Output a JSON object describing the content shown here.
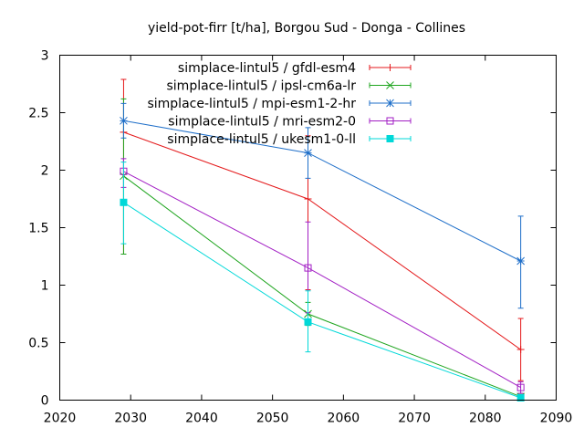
{
  "chart_data": {
    "type": "line",
    "title": "yield-pot-firr [t/ha], Borgou Sud - Donga - Collines",
    "xlabel": "",
    "ylabel": "",
    "xlim": [
      2020,
      2090
    ],
    "ylim": [
      0,
      3
    ],
    "xticks": [
      "2020",
      "2030",
      "2040",
      "2050",
      "2060",
      "2070",
      "2080",
      "2090"
    ],
    "yticks": [
      "0",
      "0.5",
      "1",
      "1.5",
      "2",
      "2.5",
      "3"
    ],
    "grid": false,
    "legend_position": "top-right",
    "series": [
      {
        "name": "simplace-lintul5 / gfdl-esm4",
        "color": "#e41a1c",
        "marker": "plus",
        "x": [
          2029,
          2055,
          2085
        ],
        "y": [
          2.33,
          1.75,
          0.44
        ],
        "err_low": [
          1.27,
          0.96,
          0.17
        ],
        "err_high": [
          2.79,
          2.3,
          0.71
        ]
      },
      {
        "name": "simplace-lintul5 / ipsl-cm6a-lr",
        "color": "#1fa51f",
        "marker": "cross",
        "x": [
          2029,
          2055,
          2085
        ],
        "y": [
          1.95,
          0.75,
          0.03
        ],
        "err_low": [
          1.27,
          0.65,
          0.01
        ],
        "err_high": [
          2.62,
          0.85,
          0.05
        ]
      },
      {
        "name": "simplace-lintul5 / mpi-esm1-2-hr",
        "color": "#1f6fc9",
        "marker": "star",
        "x": [
          2029,
          2055,
          2085
        ],
        "y": [
          2.43,
          2.15,
          1.21
        ],
        "err_low": [
          2.28,
          1.93,
          0.8
        ],
        "err_high": [
          2.58,
          2.37,
          1.6
        ]
      },
      {
        "name": "simplace-lintul5 / mri-esm2-0",
        "color": "#a21ec4",
        "marker": "square-open",
        "x": [
          2029,
          2055,
          2085
        ],
        "y": [
          1.99,
          1.15,
          0.11
        ],
        "err_low": [
          1.85,
          0.76,
          0.06
        ],
        "err_high": [
          2.1,
          1.55,
          0.16
        ]
      },
      {
        "name": "simplace-lintul5 / ukesm1-0-ll",
        "color": "#00d8d8",
        "marker": "square-filled",
        "x": [
          2029,
          2055,
          2085
        ],
        "y": [
          1.72,
          0.68,
          0.02
        ],
        "err_low": [
          1.36,
          0.42,
          0.0
        ],
        "err_high": [
          2.07,
          0.95,
          0.04
        ]
      }
    ]
  }
}
